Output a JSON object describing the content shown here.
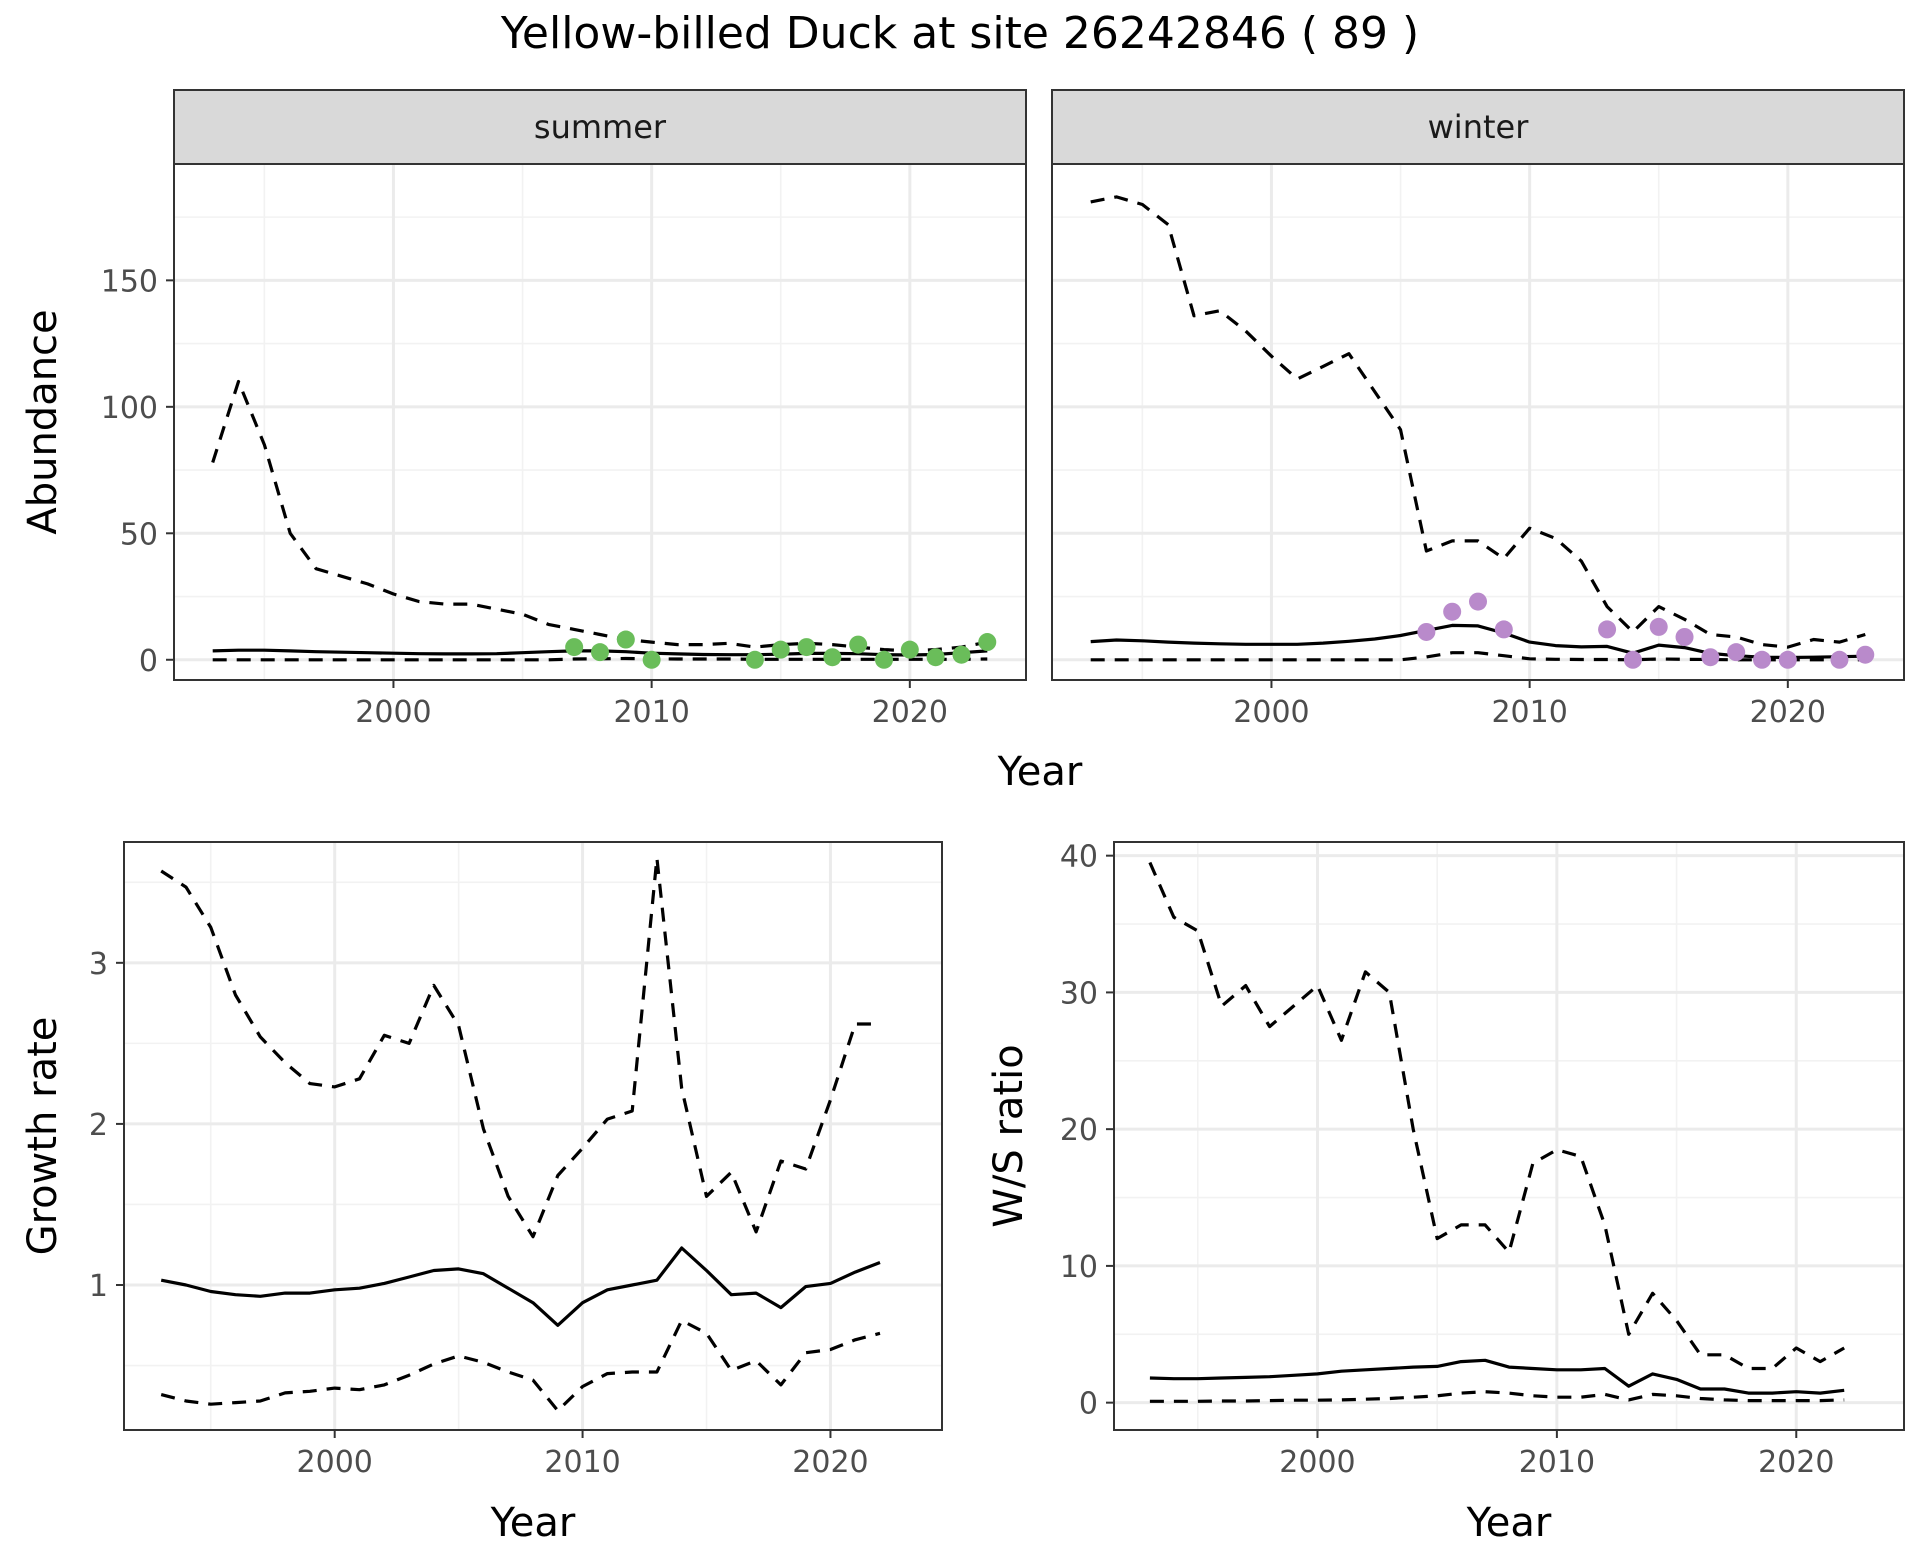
{
  "title": "Yellow-billed Duck at site 26242846 ( 89 )",
  "colors": {
    "summer_points": "#6ABD5A",
    "winter_points": "#B98ACB",
    "lines": "#000000"
  },
  "chart_data": [
    {
      "id": "abundance",
      "type": "line",
      "ylabel": "Abundance",
      "xlabel": "Year",
      "facets": [
        {
          "name": "summer",
          "x": [
            1993,
            1994,
            1995,
            1996,
            1997,
            1998,
            1999,
            2000,
            2001,
            2002,
            2003,
            2004,
            2005,
            2006,
            2007,
            2008,
            2009,
            2010,
            2011,
            2012,
            2013,
            2014,
            2015,
            2016,
            2017,
            2018,
            2019,
            2020,
            2021,
            2022,
            2023
          ],
          "mid": [
            3.5,
            3.8,
            3.8,
            3.5,
            3.2,
            3.0,
            2.8,
            2.6,
            2.4,
            2.3,
            2.3,
            2.4,
            2.8,
            3.2,
            3.5,
            3.5,
            3.2,
            2.6,
            2.3,
            2.1,
            2.0,
            2.0,
            2.2,
            2.5,
            2.5,
            2.4,
            2.0,
            1.9,
            2.1,
            2.8,
            3.5
          ],
          "upper": [
            78,
            110,
            85,
            50,
            36,
            33,
            30,
            26,
            23,
            22,
            22,
            20,
            18,
            14,
            12,
            10,
            8,
            7,
            6,
            6,
            6.5,
            5,
            6,
            6.5,
            6,
            5,
            4,
            3.5,
            4,
            5,
            7
          ],
          "lower": [
            0,
            0,
            0,
            0,
            0,
            0,
            0,
            0,
            0,
            0,
            0,
            0,
            0,
            0,
            0.3,
            0.4,
            0.5,
            0.4,
            0.3,
            0.3,
            0.3,
            0.2,
            0.2,
            0.2,
            0.2,
            0.2,
            0.2,
            0.2,
            0.2,
            0.2,
            0.3
          ],
          "points": [
            [
              2007,
              5
            ],
            [
              2008,
              3
            ],
            [
              2009,
              8
            ],
            [
              2010,
              0
            ],
            [
              2014,
              0
            ],
            [
              2015,
              4
            ],
            [
              2016,
              5
            ],
            [
              2017,
              1
            ],
            [
              2018,
              6
            ],
            [
              2019,
              0
            ],
            [
              2020,
              4
            ],
            [
              2021,
              1
            ],
            [
              2022,
              2
            ],
            [
              2023,
              7
            ]
          ]
        },
        {
          "name": "winter",
          "x": [
            1993,
            1994,
            1995,
            1996,
            1997,
            1998,
            1999,
            2000,
            2001,
            2002,
            2003,
            2004,
            2005,
            2006,
            2007,
            2008,
            2009,
            2010,
            2011,
            2012,
            2013,
            2014,
            2015,
            2016,
            2017,
            2018,
            2019,
            2020,
            2021,
            2022,
            2023
          ],
          "mid": [
            7.2,
            7.8,
            7.5,
            7.0,
            6.6,
            6.3,
            6.1,
            6.1,
            6.1,
            6.6,
            7.3,
            8.2,
            9.6,
            11.6,
            13.6,
            13.4,
            10.6,
            7.0,
            5.6,
            5.1,
            5.3,
            2.6,
            5.8,
            4.8,
            2.5,
            1.6,
            1.0,
            0.9,
            1.0,
            1.2,
            1.4
          ],
          "upper": [
            181,
            183,
            180,
            172,
            136,
            138,
            130,
            120,
            111,
            116,
            121,
            106,
            91,
            43,
            47,
            47,
            40,
            52,
            48,
            39,
            21,
            11,
            21,
            16,
            10,
            9,
            6,
            5,
            8,
            7,
            10
          ],
          "lower": [
            0,
            0,
            0,
            0,
            0,
            0,
            0,
            0,
            0,
            0,
            0,
            0,
            0,
            1.1,
            2.8,
            2.8,
            1.6,
            0.4,
            0.2,
            0.1,
            0.1,
            0,
            0.3,
            0.2,
            0.1,
            0,
            0,
            0,
            0,
            0,
            0
          ],
          "points": [
            [
              2006,
              11
            ],
            [
              2007,
              19
            ],
            [
              2008,
              23
            ],
            [
              2009,
              12
            ],
            [
              2013,
              12
            ],
            [
              2014,
              0
            ],
            [
              2015,
              13
            ],
            [
              2016,
              9
            ],
            [
              2017,
              1
            ],
            [
              2018,
              3
            ],
            [
              2019,
              0
            ],
            [
              2020,
              0
            ],
            [
              2022,
              0
            ],
            [
              2023,
              2
            ]
          ]
        }
      ],
      "xlim": [
        1991.5,
        2024.5
      ],
      "ylim": [
        -8,
        196
      ],
      "xticks": [
        2000,
        2010,
        2020
      ],
      "yticks": [
        0,
        50,
        100,
        150
      ]
    },
    {
      "id": "growth",
      "type": "line",
      "ylabel": "Growth rate",
      "xlabel": "Year",
      "x": [
        1993,
        1994,
        1995,
        1996,
        1997,
        1998,
        1999,
        2000,
        2001,
        2002,
        2003,
        2004,
        2005,
        2006,
        2007,
        2008,
        2009,
        2010,
        2011,
        2012,
        2013,
        2014,
        2015,
        2016,
        2017,
        2018,
        2019,
        2020,
        2021,
        2022
      ],
      "mid": [
        1.03,
        1.0,
        0.96,
        0.94,
        0.93,
        0.95,
        0.95,
        0.97,
        0.98,
        1.01,
        1.05,
        1.09,
        1.1,
        1.07,
        0.98,
        0.89,
        0.75,
        0.89,
        0.97,
        1.0,
        1.03,
        1.23,
        1.09,
        0.94,
        0.95,
        0.86,
        0.99,
        1.01,
        1.08,
        1.14
      ],
      "upper": [
        3.57,
        3.47,
        3.22,
        2.8,
        2.54,
        2.38,
        2.25,
        2.23,
        2.28,
        2.55,
        2.5,
        2.86,
        2.61,
        1.97,
        1.55,
        1.3,
        1.68,
        1.85,
        2.03,
        2.08,
        3.65,
        2.22,
        1.55,
        1.7,
        1.33,
        1.77,
        1.72,
        2.15,
        2.62,
        2.62
      ],
      "lower": [
        0.32,
        0.28,
        0.26,
        0.27,
        0.28,
        0.33,
        0.34,
        0.36,
        0.35,
        0.38,
        0.44,
        0.51,
        0.56,
        0.52,
        0.46,
        0.41,
        0.22,
        0.37,
        0.45,
        0.46,
        0.46,
        0.78,
        0.7,
        0.47,
        0.53,
        0.38,
        0.58,
        0.6,
        0.66,
        0.7
      ],
      "xlim": [
        1991.5,
        2024.5
      ],
      "ylim": [
        0.1,
        3.75
      ],
      "xticks": [
        2000,
        2010,
        2020
      ],
      "yticks": [
        1,
        2,
        3
      ]
    },
    {
      "id": "ratio",
      "type": "line",
      "ylabel": "W/S ratio",
      "xlabel": "Year",
      "x": [
        1993,
        1994,
        1995,
        1996,
        1997,
        1998,
        1999,
        2000,
        2001,
        2002,
        2003,
        2004,
        2005,
        2006,
        2007,
        2008,
        2009,
        2010,
        2011,
        2012,
        2013,
        2014,
        2015,
        2016,
        2017,
        2018,
        2019,
        2020,
        2021,
        2022
      ],
      "mid": [
        1.8,
        1.75,
        1.75,
        1.8,
        1.85,
        1.9,
        2.0,
        2.1,
        2.3,
        2.4,
        2.5,
        2.6,
        2.65,
        3.0,
        3.1,
        2.6,
        2.5,
        2.4,
        2.4,
        2.5,
        1.2,
        2.1,
        1.7,
        1.0,
        1.0,
        0.7,
        0.7,
        0.8,
        0.7,
        0.9
      ],
      "upper": [
        39.5,
        35.5,
        34.5,
        29,
        30.5,
        27.5,
        29,
        30.5,
        26.5,
        31.5,
        30,
        20,
        12,
        13,
        13,
        11,
        17.5,
        18.5,
        18,
        13,
        5,
        8,
        6,
        3.5,
        3.5,
        2.5,
        2.5,
        4,
        3,
        4
      ],
      "lower": [
        0.1,
        0.1,
        0.1,
        0.12,
        0.12,
        0.15,
        0.18,
        0.18,
        0.2,
        0.25,
        0.3,
        0.4,
        0.5,
        0.7,
        0.8,
        0.7,
        0.5,
        0.4,
        0.4,
        0.6,
        0.2,
        0.6,
        0.5,
        0.3,
        0.2,
        0.15,
        0.15,
        0.15,
        0.15,
        0.2
      ],
      "xlim": [
        1991.5,
        2024.5
      ],
      "ylim": [
        -2,
        41
      ],
      "xticks": [
        2000,
        2010,
        2020
      ],
      "yticks": [
        0,
        10,
        20,
        30,
        40
      ]
    }
  ]
}
